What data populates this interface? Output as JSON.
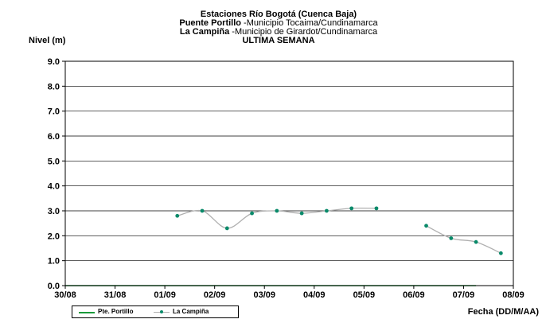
{
  "chart_data": {
    "type": "line",
    "title_lines": [
      {
        "bold": "Estaciones Río Bogotá (Cuenca Baja)",
        "normal": ""
      },
      {
        "bold": "Puente Portillo",
        "normal": " -Municipio Tocaima/Cundinamarca"
      },
      {
        "bold": "La Campiña",
        "normal": " -Municipio de Girardot/Cundinamarca"
      },
      {
        "bold": "ULTIMA SEMANA",
        "normal": ""
      }
    ],
    "ylabel": "Nivel (m)",
    "xlabel": "Fecha (DD/M/AA)",
    "ylim": [
      0,
      9
    ],
    "yticks": [
      "0.0",
      "1.0",
      "2.0",
      "3.0",
      "4.0",
      "5.0",
      "6.0",
      "7.0",
      "8.0",
      "9.0"
    ],
    "xlim": [
      0,
      9
    ],
    "xticks": [
      "30/08",
      "31/08",
      "01/09",
      "02/09",
      "03/09",
      "04/09",
      "05/09",
      "06/09",
      "07/09",
      "08/09"
    ],
    "x_units": "days from first tick label",
    "grid": true,
    "legend_position": "bottom-left",
    "series": [
      {
        "name": "Pte. Portillo",
        "color": "#1a9a3a",
        "markers": false,
        "segments": [
          [
            [
              0.0,
              0.0
            ],
            [
              1.25,
              0.0
            ],
            [
              2.25,
              0.0
            ],
            [
              3.25,
              0.0
            ],
            [
              4.25,
              0.0
            ],
            [
              5.25,
              0.0
            ],
            [
              7.25,
              0.0
            ],
            [
              8.25,
              0.0
            ]
          ]
        ]
      },
      {
        "name": "La Campiña",
        "color": "#0a8a6a",
        "line_color": "#b0b0b0",
        "markers": true,
        "segments": [
          [
            [
              2.25,
              2.8
            ],
            [
              2.75,
              3.0
            ],
            [
              3.25,
              2.3
            ],
            [
              3.75,
              2.9
            ],
            [
              4.25,
              3.0
            ],
            [
              4.75,
              2.9
            ],
            [
              5.25,
              3.0
            ],
            [
              5.75,
              3.1
            ],
            [
              6.25,
              3.1
            ]
          ],
          [
            [
              7.25,
              2.4
            ],
            [
              7.75,
              1.9
            ],
            [
              8.25,
              1.75
            ],
            [
              8.75,
              1.3
            ]
          ]
        ]
      }
    ]
  }
}
